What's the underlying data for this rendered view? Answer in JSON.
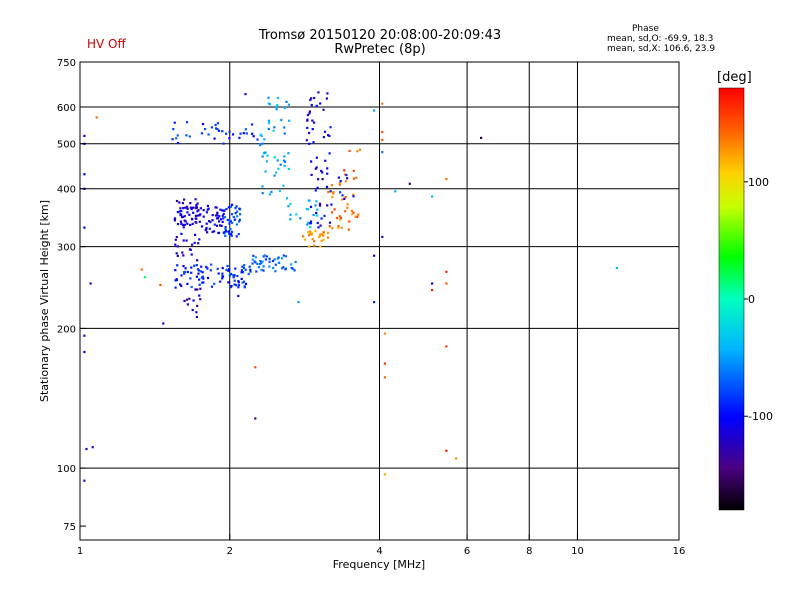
{
  "header": {
    "hv_status": "HV Off",
    "title_line1": "Tromsø 20150120 20:08:00-20:09:43",
    "title_line2": "RwPretec (8p)"
  },
  "phase_stats": {
    "title": "Phase",
    "line1": "mean, sd,O: -69.9, 18.3",
    "line2": "mean, sd,X: 106.6, 23.9"
  },
  "colorbar": {
    "label": "[deg]",
    "ticks": [
      100,
      0,
      -100
    ],
    "range": [
      -180,
      180
    ]
  },
  "chart_data": {
    "type": "scatter",
    "title": "Tromsø 20150120 20:08:00-20:09:43",
    "subtitle": "RwPretec (8p)",
    "xlabel": "Frequency [MHz]",
    "ylabel": "Stationary phase Virtual Height [km]",
    "x_scale": "log",
    "y_scale": "log",
    "xlim": [
      1,
      16
    ],
    "ylim": [
      70,
      750
    ],
    "x_ticks": [
      1,
      2,
      4,
      6,
      8,
      10,
      16
    ],
    "y_ticks": [
      75,
      100,
      200,
      300,
      400,
      500,
      600,
      750
    ],
    "grid": true,
    "color_variable": "phase [deg]",
    "clusters": [
      {
        "x_range": [
          1.55,
          1.75
        ],
        "y_range": [
          330,
          380
        ],
        "phase": -115,
        "count": 60
      },
      {
        "x_range": [
          1.75,
          1.95
        ],
        "y_range": [
          320,
          370
        ],
        "phase": -108,
        "count": 45
      },
      {
        "x_range": [
          1.95,
          2.1
        ],
        "y_range": [
          315,
          375
        ],
        "phase": -80,
        "count": 40
      },
      {
        "x_range": [
          1.55,
          2.2
        ],
        "y_range": [
          245,
          275
        ],
        "phase": -90,
        "count": 90
      },
      {
        "x_range": [
          2.2,
          2.75
        ],
        "y_range": [
          265,
          290
        ],
        "phase": -65,
        "count": 45
      },
      {
        "x_range": [
          1.55,
          1.75
        ],
        "y_range": [
          280,
          320
        ],
        "phase": -112,
        "count": 20
      },
      {
        "x_range": [
          1.6,
          1.75
        ],
        "y_range": [
          210,
          245
        ],
        "phase": -125,
        "count": 14
      },
      {
        "x_range": [
          1.5,
          2.3
        ],
        "y_range": [
          500,
          560
        ],
        "phase": -85,
        "count": 35
      },
      {
        "x_range": [
          2.3,
          2.65
        ],
        "y_range": [
          380,
          640
        ],
        "phase": -45,
        "count": 50
      },
      {
        "x_range": [
          2.85,
          3.2
        ],
        "y_range": [
          330,
          650
        ],
        "phase": -108,
        "count": 60
      },
      {
        "x_range": [
          2.8,
          3.15
        ],
        "y_range": [
          300,
          325
        ],
        "phase": 125,
        "count": 25
      },
      {
        "x_range": [
          3.15,
          3.65
        ],
        "y_range": [
          320,
          420
        ],
        "phase": 140,
        "count": 35
      },
      {
        "x_range": [
          3.35,
          3.7
        ],
        "y_range": [
          420,
          490
        ],
        "phase": 150,
        "count": 8
      },
      {
        "x_range": [
          2.6,
          3.0
        ],
        "y_range": [
          330,
          380
        ],
        "phase": -40,
        "count": 18
      },
      {
        "x_range": [
          3.3,
          3.6
        ],
        "y_range": [
          380,
          430
        ],
        "phase": -100,
        "count": 8
      }
    ],
    "points": [
      {
        "x": 1.02,
        "y": 520,
        "phase": -100
      },
      {
        "x": 1.02,
        "y": 500,
        "phase": -100
      },
      {
        "x": 1.02,
        "y": 430,
        "phase": -100
      },
      {
        "x": 1.02,
        "y": 400,
        "phase": -100
      },
      {
        "x": 1.02,
        "y": 330,
        "phase": -100
      },
      {
        "x": 1.02,
        "y": 193,
        "phase": -110
      },
      {
        "x": 1.02,
        "y": 178,
        "phase": -110
      },
      {
        "x": 1.03,
        "y": 110,
        "phase": -120
      },
      {
        "x": 1.06,
        "y": 111,
        "phase": -120
      },
      {
        "x": 1.02,
        "y": 94,
        "phase": -120
      },
      {
        "x": 1.05,
        "y": 250,
        "phase": -120
      },
      {
        "x": 1.08,
        "y": 570,
        "phase": 140
      },
      {
        "x": 1.33,
        "y": 268,
        "phase": 140
      },
      {
        "x": 1.35,
        "y": 258,
        "phase": 20
      },
      {
        "x": 1.45,
        "y": 248,
        "phase": 150
      },
      {
        "x": 1.47,
        "y": 205,
        "phase": -120
      },
      {
        "x": 2.08,
        "y": 235,
        "phase": -120
      },
      {
        "x": 2.25,
        "y": 165,
        "phase": 150
      },
      {
        "x": 2.25,
        "y": 128,
        "phase": -140
      },
      {
        "x": 2.75,
        "y": 228,
        "phase": -50
      },
      {
        "x": 2.15,
        "y": 640,
        "phase": -120
      },
      {
        "x": 3.9,
        "y": 590,
        "phase": -50
      },
      {
        "x": 4.05,
        "y": 610,
        "phase": 140
      },
      {
        "x": 4.05,
        "y": 530,
        "phase": 150
      },
      {
        "x": 4.05,
        "y": 510,
        "phase": 150
      },
      {
        "x": 4.05,
        "y": 480,
        "phase": -60
      },
      {
        "x": 4.05,
        "y": 315,
        "phase": -130
      },
      {
        "x": 3.9,
        "y": 287,
        "phase": -110
      },
      {
        "x": 3.9,
        "y": 228,
        "phase": -90
      },
      {
        "x": 4.1,
        "y": 195,
        "phase": 130
      },
      {
        "x": 4.1,
        "y": 168,
        "phase": 160
      },
      {
        "x": 4.1,
        "y": 157,
        "phase": 140
      },
      {
        "x": 4.1,
        "y": 97,
        "phase": 120
      },
      {
        "x": 4.3,
        "y": 395,
        "phase": -40
      },
      {
        "x": 4.6,
        "y": 410,
        "phase": -150
      },
      {
        "x": 5.1,
        "y": 385,
        "phase": -40
      },
      {
        "x": 5.1,
        "y": 250,
        "phase": -110
      },
      {
        "x": 5.1,
        "y": 242,
        "phase": 170
      },
      {
        "x": 5.45,
        "y": 420,
        "phase": 140
      },
      {
        "x": 5.45,
        "y": 265,
        "phase": 170
      },
      {
        "x": 5.45,
        "y": 250,
        "phase": 150
      },
      {
        "x": 5.45,
        "y": 183,
        "phase": 160
      },
      {
        "x": 5.45,
        "y": 109,
        "phase": 170
      },
      {
        "x": 5.7,
        "y": 105,
        "phase": 130
      },
      {
        "x": 6.4,
        "y": 515,
        "phase": -160
      },
      {
        "x": 12.0,
        "y": 270,
        "phase": -40
      }
    ]
  }
}
